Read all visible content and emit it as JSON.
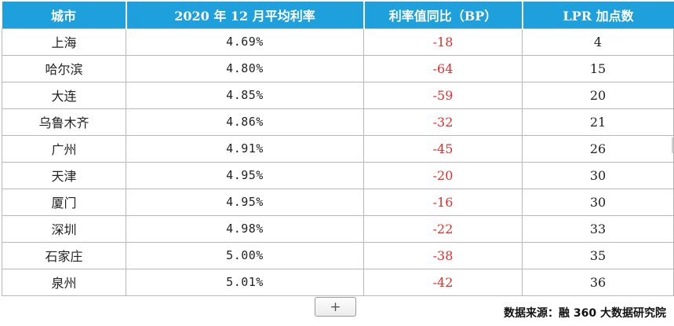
{
  "table": {
    "headers": [
      "城市",
      "2020 年 12 月平均利率",
      "利率值同比（BP）",
      "LPR 加点数"
    ],
    "rows": [
      {
        "city": "上海",
        "rate": "4.69%",
        "yoy": "-18",
        "lpr": "4"
      },
      {
        "city": "哈尔滨",
        "rate": "4.80%",
        "yoy": "-64",
        "lpr": "15"
      },
      {
        "city": "大连",
        "rate": "4.85%",
        "yoy": "-59",
        "lpr": "20"
      },
      {
        "city": "乌鲁木齐",
        "rate": "4.86%",
        "yoy": "-32",
        "lpr": "21"
      },
      {
        "city": "广州",
        "rate": "4.91%",
        "yoy": "-45",
        "lpr": "26"
      },
      {
        "city": "天津",
        "rate": "4.95%",
        "yoy": "-20",
        "lpr": "30"
      },
      {
        "city": "厦门",
        "rate": "4.95%",
        "yoy": "-16",
        "lpr": "30"
      },
      {
        "city": "深圳",
        "rate": "4.98%",
        "yoy": "-22",
        "lpr": "33"
      },
      {
        "city": "石家庄",
        "rate": "5.00%",
        "yoy": "-38",
        "lpr": "35"
      },
      {
        "city": "泉州",
        "rate": "5.01%",
        "yoy": "-42",
        "lpr": "36"
      }
    ]
  },
  "toolbar": {
    "add_label": "+"
  },
  "footer": {
    "source": "数据来源：融 360 大数据研究院"
  },
  "colors": {
    "header_bg": "#1ea0dc",
    "header_text": "#ffffff",
    "negative_text": "#e0302a",
    "grid_line": "#b8b8b8"
  }
}
